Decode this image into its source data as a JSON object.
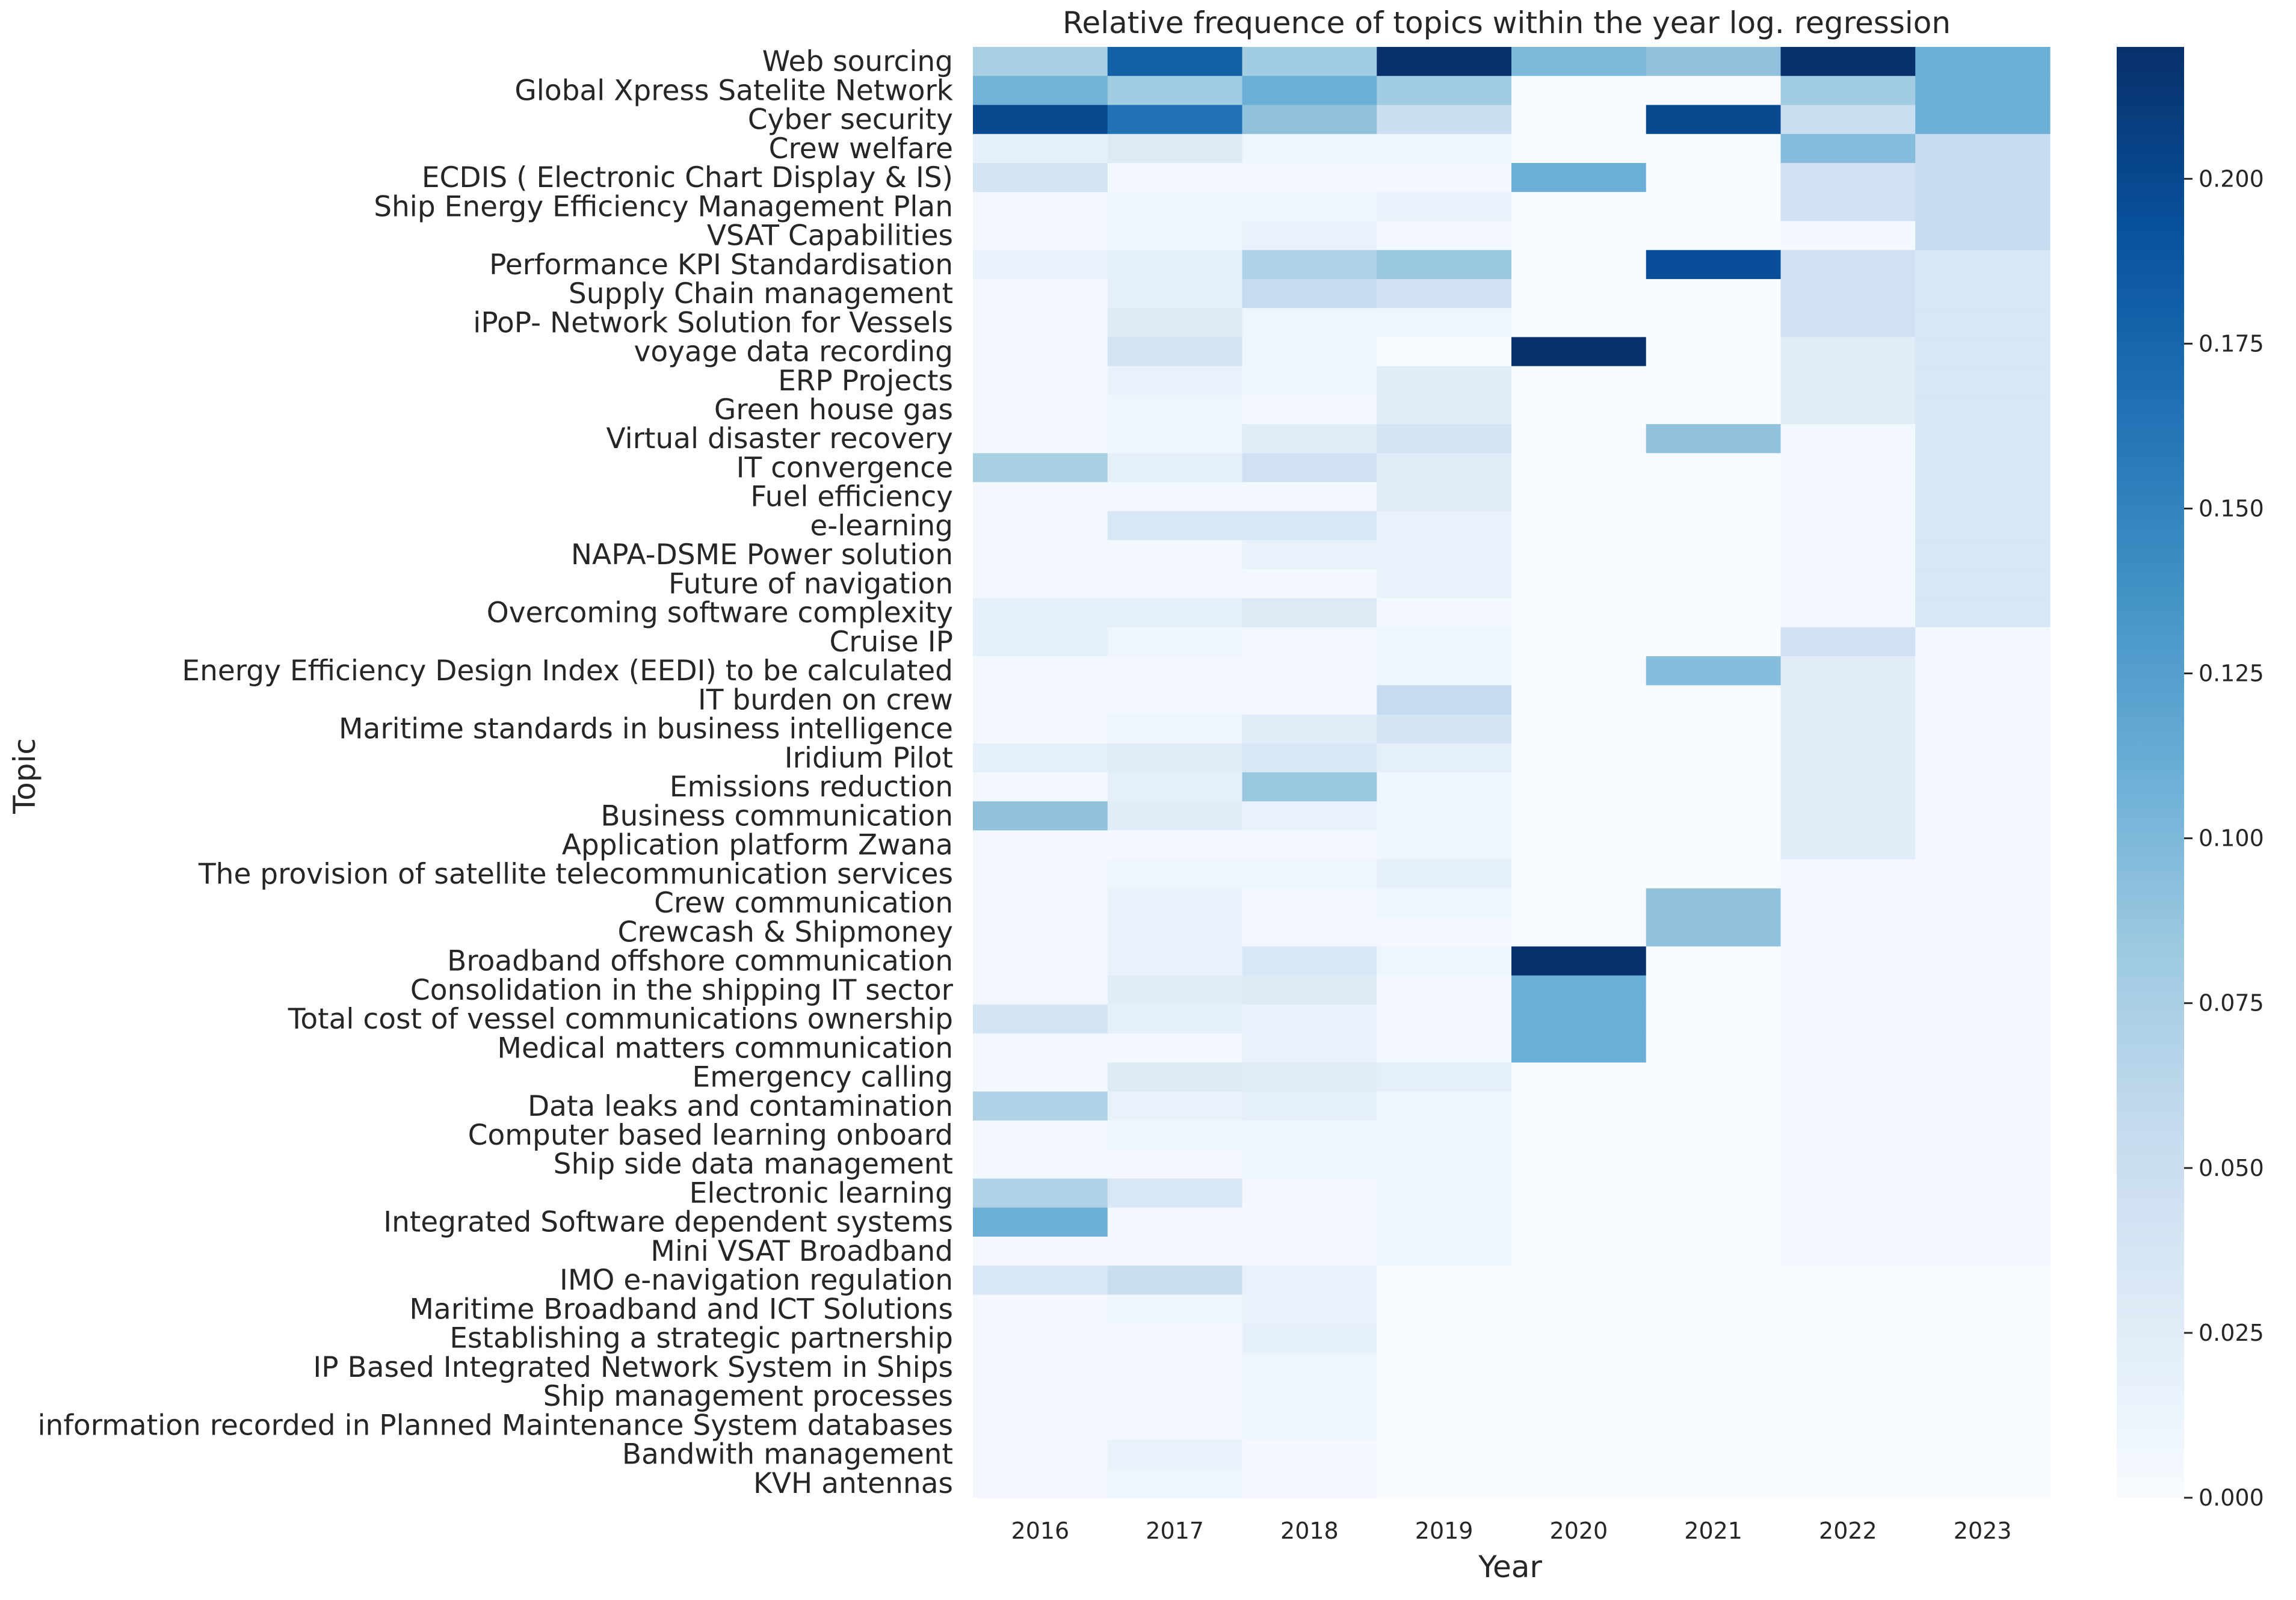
{
  "chart_data": {
    "type": "heatmap",
    "title": "Relative frequence of topics within the year log. regression",
    "xlabel": "Year",
    "ylabel": "Topic",
    "colormap": "Blues",
    "colorbar": {
      "vmin": 0,
      "vmax": 0.22,
      "ticks": [
        "0.000",
        "0.025",
        "0.050",
        "0.075",
        "0.100",
        "0.125",
        "0.150",
        "0.175",
        "0.200"
      ]
    },
    "years": [
      "2016",
      "2017",
      "2018",
      "2019",
      "2020",
      "2021",
      "2022",
      "2023"
    ],
    "topics": [
      "Web sourcing",
      "Global Xpress Satelite Network",
      "Cyber security",
      "Crew welfare",
      "ECDIS ( Electronic Chart Display & IS)",
      "Ship Energy Efficiency Management Plan",
      "VSAT Capabilities",
      "Performance KPI Standardisation",
      "Supply Chain management",
      "iPoP- Network Solution for Vessels",
      "voyage data recording",
      "ERP Projects",
      "Green house gas",
      "Virtual disaster recovery",
      "IT convergence",
      "Fuel efficiency",
      "e-learning",
      "NAPA-DSME Power solution",
      "Future of navigation",
      "Overcoming software complexity",
      "Cruise IP",
      "Energy Efficiency Design Index (EEDI) to be calculated",
      "IT burden on crew",
      "Maritime standards in business intelligence",
      "Iridium Pilot",
      "Emissions reduction",
      "Business communication",
      "Application platform Zwana",
      "The provision of satellite telecommunication services",
      "Crew communication",
      "Crewcash & Shipmoney",
      "Broadband offshore communication",
      "Consolidation in the shipping IT sector",
      "Total cost of vessel communications ownership",
      "Medical matters communication",
      "Emergency calling",
      "Data leaks and contamination",
      "Computer based learning onboard",
      "Ship side data management",
      "Electronic learning",
      "Integrated Software dependent systems",
      "Mini VSAT Broadband",
      "IMO e-navigation regulation",
      "Maritime Broadband and ICT Solutions",
      "Establishing a strategic partnership",
      "IP Based Integrated Network System in Ships",
      "Ship management processes",
      "information recorded in Planned Maintenance System databases",
      "Bandwith management",
      "KVH antennas"
    ],
    "values": [
      [
        0.075,
        0.18,
        0.08,
        0.22,
        0.1,
        0.09,
        0.22,
        0.11
      ],
      [
        0.105,
        0.08,
        0.11,
        0.08,
        0.0,
        0.0,
        0.08,
        0.11
      ],
      [
        0.2,
        0.165,
        0.09,
        0.05,
        0.0,
        0.2,
        0.05,
        0.11
      ],
      [
        0.02,
        0.03,
        0.01,
        0.01,
        0.0,
        0.0,
        0.095,
        0.055
      ],
      [
        0.04,
        0.005,
        0.005,
        0.005,
        0.11,
        0.0,
        0.045,
        0.055
      ],
      [
        0.005,
        0.01,
        0.01,
        0.015,
        0.0,
        0.0,
        0.045,
        0.055
      ],
      [
        0.005,
        0.01,
        0.015,
        0.005,
        0.0,
        0.0,
        0.005,
        0.055
      ],
      [
        0.015,
        0.02,
        0.07,
        0.085,
        0.0,
        0.195,
        0.045,
        0.035
      ],
      [
        0.005,
        0.02,
        0.055,
        0.045,
        0.0,
        0.0,
        0.045,
        0.035
      ],
      [
        0.005,
        0.03,
        0.01,
        0.01,
        0.0,
        0.0,
        0.045,
        0.035
      ],
      [
        0.005,
        0.04,
        0.01,
        0.0,
        0.22,
        0.0,
        0.025,
        0.035
      ],
      [
        0.005,
        0.015,
        0.01,
        0.025,
        0.0,
        0.0,
        0.025,
        0.035
      ],
      [
        0.005,
        0.01,
        0.005,
        0.025,
        0.0,
        0.0,
        0.025,
        0.035
      ],
      [
        0.005,
        0.01,
        0.025,
        0.04,
        0.0,
        0.09,
        0.005,
        0.035
      ],
      [
        0.075,
        0.02,
        0.045,
        0.025,
        0.0,
        0.0,
        0.005,
        0.035
      ],
      [
        0.005,
        0.005,
        0.005,
        0.025,
        0.0,
        0.0,
        0.005,
        0.035
      ],
      [
        0.005,
        0.035,
        0.035,
        0.015,
        0.0,
        0.0,
        0.005,
        0.035
      ],
      [
        0.005,
        0.005,
        0.015,
        0.015,
        0.0,
        0.0,
        0.005,
        0.035
      ],
      [
        0.005,
        0.005,
        0.005,
        0.015,
        0.0,
        0.0,
        0.005,
        0.035
      ],
      [
        0.02,
        0.02,
        0.03,
        0.005,
        0.0,
        0.0,
        0.005,
        0.035
      ],
      [
        0.02,
        0.01,
        0.005,
        0.01,
        0.0,
        0.0,
        0.045,
        0.005
      ],
      [
        0.005,
        0.005,
        0.005,
        0.01,
        0.0,
        0.095,
        0.025,
        0.005
      ],
      [
        0.005,
        0.005,
        0.005,
        0.055,
        0.0,
        0.0,
        0.025,
        0.005
      ],
      [
        0.005,
        0.01,
        0.025,
        0.04,
        0.0,
        0.0,
        0.025,
        0.005
      ],
      [
        0.02,
        0.025,
        0.035,
        0.02,
        0.0,
        0.0,
        0.025,
        0.005
      ],
      [
        0.005,
        0.02,
        0.085,
        0.01,
        0.0,
        0.0,
        0.025,
        0.005
      ],
      [
        0.09,
        0.025,
        0.015,
        0.01,
        0.0,
        0.0,
        0.025,
        0.005
      ],
      [
        0.005,
        0.005,
        0.005,
        0.01,
        0.0,
        0.0,
        0.025,
        0.005
      ],
      [
        0.005,
        0.01,
        0.01,
        0.02,
        0.0,
        0.0,
        0.005,
        0.005
      ],
      [
        0.005,
        0.015,
        0.005,
        0.01,
        0.0,
        0.09,
        0.005,
        0.005
      ],
      [
        0.005,
        0.015,
        0.005,
        0.005,
        0.0,
        0.09,
        0.005,
        0.005
      ],
      [
        0.005,
        0.015,
        0.035,
        0.01,
        0.22,
        0.0,
        0.005,
        0.005
      ],
      [
        0.005,
        0.025,
        0.03,
        0.005,
        0.11,
        0.0,
        0.005,
        0.005
      ],
      [
        0.04,
        0.02,
        0.015,
        0.005,
        0.11,
        0.0,
        0.005,
        0.005
      ],
      [
        0.005,
        0.005,
        0.015,
        0.005,
        0.11,
        0.0,
        0.005,
        0.005
      ],
      [
        0.005,
        0.03,
        0.025,
        0.02,
        0.0,
        0.0,
        0.005,
        0.005
      ],
      [
        0.07,
        0.015,
        0.02,
        0.01,
        0.0,
        0.0,
        0.005,
        0.005
      ],
      [
        0.005,
        0.01,
        0.01,
        0.01,
        0.0,
        0.0,
        0.005,
        0.005
      ],
      [
        0.005,
        0.005,
        0.01,
        0.01,
        0.0,
        0.0,
        0.005,
        0.005
      ],
      [
        0.07,
        0.035,
        0.005,
        0.01,
        0.0,
        0.0,
        0.005,
        0.005
      ],
      [
        0.11,
        0.005,
        0.005,
        0.01,
        0.0,
        0.0,
        0.005,
        0.005
      ],
      [
        0.005,
        0.005,
        0.005,
        0.01,
        0.0,
        0.0,
        0.005,
        0.005
      ],
      [
        0.035,
        0.05,
        0.015,
        0.0,
        0.0,
        0.0,
        0.0,
        0.0
      ],
      [
        0.005,
        0.01,
        0.015,
        0.0,
        0.0,
        0.0,
        0.0,
        0.0
      ],
      [
        0.005,
        0.005,
        0.02,
        0.0,
        0.0,
        0.0,
        0.0,
        0.0
      ],
      [
        0.005,
        0.005,
        0.01,
        0.0,
        0.0,
        0.0,
        0.0,
        0.0
      ],
      [
        0.005,
        0.005,
        0.01,
        0.0,
        0.0,
        0.0,
        0.0,
        0.0
      ],
      [
        0.005,
        0.005,
        0.01,
        0.0,
        0.0,
        0.0,
        0.0,
        0.0
      ],
      [
        0.005,
        0.015,
        0.005,
        0.0,
        0.0,
        0.0,
        0.0,
        0.0
      ],
      [
        0.005,
        0.01,
        0.005,
        0.0,
        0.0,
        0.0,
        0.0,
        0.0
      ]
    ]
  }
}
